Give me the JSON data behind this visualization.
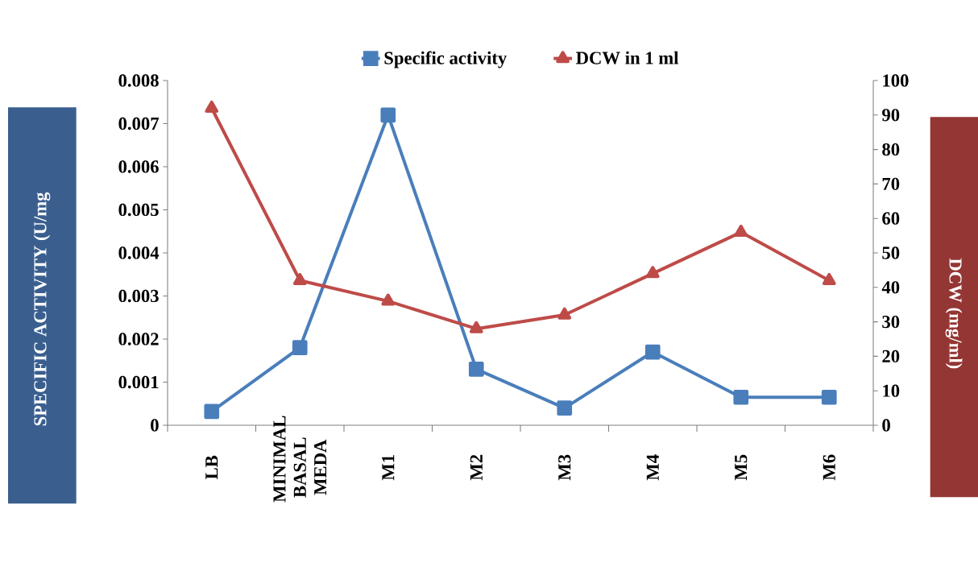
{
  "chart_data": {
    "type": "line",
    "categories": [
      "LB",
      "MINIMAL BASAL MEDA",
      "M1",
      "M2",
      "M3",
      "M4",
      "M5",
      "M6"
    ],
    "series": [
      {
        "name": "Specific activity",
        "color": "#4a7ebb",
        "marker": "square",
        "values": [
          0.00032,
          0.0018,
          0.0072,
          0.0013,
          0.0004,
          0.0017,
          0.00065,
          0.00065
        ]
      },
      {
        "name": "DCW in 1 ml",
        "color": "#be4b48",
        "marker": "triangle",
        "axis": "y2",
        "values": [
          92,
          42,
          36,
          28,
          32,
          44,
          56,
          42
        ]
      }
    ],
    "ylabel": "SPECIFIC ACTIVITY (U/mg",
    "y2label": "DCW (mg/ml)",
    "ylim": [
      0,
      0.008
    ],
    "yticks": [
      0,
      0.001,
      0.002,
      0.003,
      0.004,
      0.005,
      0.006,
      0.007,
      0.008
    ],
    "y2lim": [
      0,
      100
    ],
    "y2ticks": [
      0,
      10,
      20,
      30,
      40,
      50,
      60,
      70,
      80,
      90,
      100
    ],
    "legend": "top",
    "line_style": "solid"
  }
}
